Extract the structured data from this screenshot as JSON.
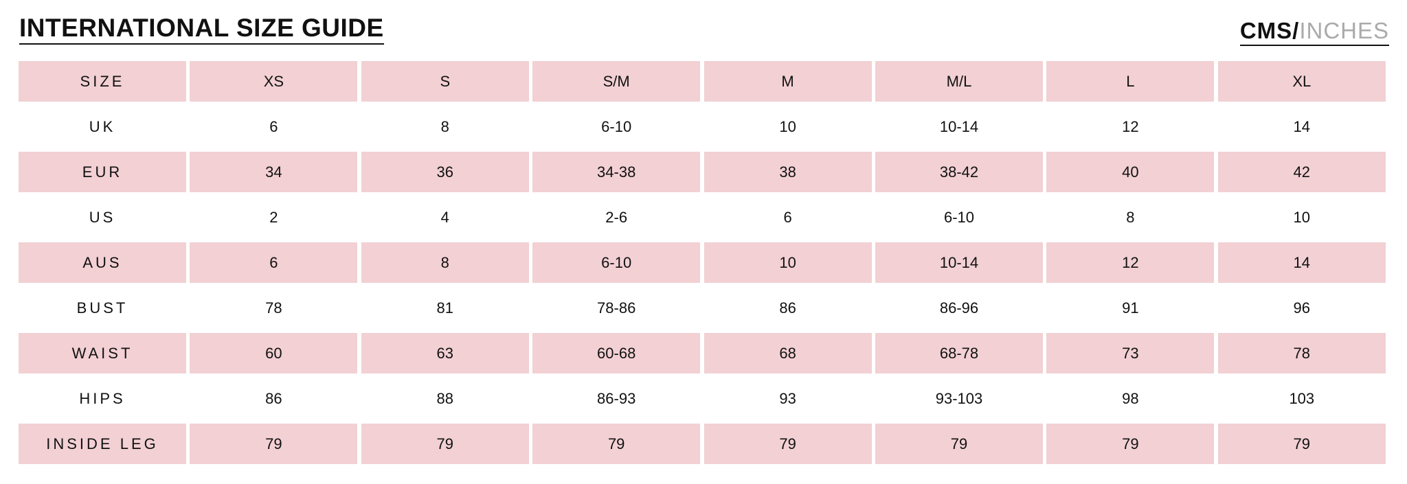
{
  "header": {
    "title": "INTERNATIONAL SIZE GUIDE",
    "unit_active": "CMS/",
    "unit_inactive": "INCHES"
  },
  "table": {
    "rows": [
      [
        "SIZE",
        "XS",
        "S",
        "S/M",
        "M",
        "M/L",
        "L",
        "XL"
      ],
      [
        "UK",
        "6",
        "8",
        "6-10",
        "10",
        "10-14",
        "12",
        "14"
      ],
      [
        "EUR",
        "34",
        "36",
        "34-38",
        "38",
        "38-42",
        "40",
        "42"
      ],
      [
        "US",
        "2",
        "4",
        "2-6",
        "6",
        "6-10",
        "8",
        "10"
      ],
      [
        "AUS",
        "6",
        "8",
        "6-10",
        "10",
        "10-14",
        "12",
        "14"
      ],
      [
        "BUST",
        "78",
        "81",
        "78-86",
        "86",
        "86-96",
        "91",
        "96"
      ],
      [
        "WAIST",
        "60",
        "63",
        "60-68",
        "68",
        "68-78",
        "73",
        "78"
      ],
      [
        "HIPS",
        "86",
        "88",
        "86-93",
        "93",
        "93-103",
        "98",
        "103"
      ],
      [
        "INSIDE LEG",
        "79",
        "79",
        "79",
        "79",
        "79",
        "79",
        "79"
      ]
    ]
  }
}
